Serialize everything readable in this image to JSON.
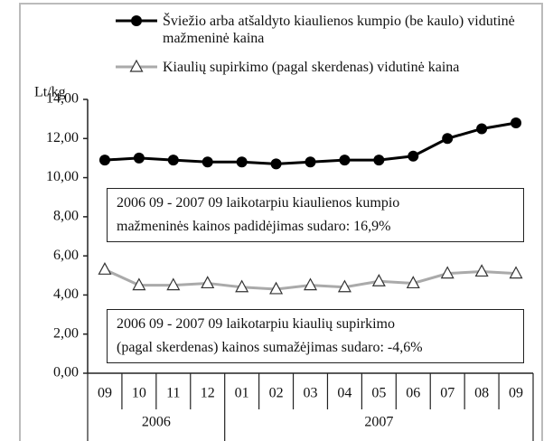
{
  "chart_data": {
    "type": "line",
    "y_label": "Lt/kg",
    "categories": [
      "09",
      "10",
      "11",
      "12",
      "01",
      "02",
      "03",
      "04",
      "05",
      "06",
      "07",
      "08",
      "09"
    ],
    "groups": [
      {
        "label": "2006",
        "count": 4
      },
      {
        "label": "2007",
        "count": 9
      }
    ],
    "series": [
      {
        "name": "Šviežio arba atšaldyto kiaulienos kumpio (be kaulo) vidutinė mažmeninė kaina",
        "color": "#000000",
        "marker": "circle",
        "values": [
          10.9,
          11.0,
          10.9,
          10.8,
          10.8,
          10.7,
          10.8,
          10.9,
          10.9,
          11.1,
          12.0,
          12.5,
          12.8
        ]
      },
      {
        "name": "Kiaulių supirkimo (pagal skerdenas) vidutinė kaina",
        "color": "#aaaaaa",
        "marker": "triangle",
        "values": [
          5.3,
          4.5,
          4.5,
          4.6,
          4.4,
          4.3,
          4.5,
          4.4,
          4.7,
          4.6,
          5.1,
          5.2,
          5.1
        ]
      }
    ],
    "ylim": [
      0,
      14
    ],
    "yticks": [
      {
        "value": 0,
        "label": "0,00"
      },
      {
        "value": 2,
        "label": "2,00"
      },
      {
        "value": 4,
        "label": "4,00"
      },
      {
        "value": 6,
        "label": "6,00"
      },
      {
        "value": 8,
        "label": "8,00"
      },
      {
        "value": 10,
        "label": "10,00"
      },
      {
        "value": 12,
        "label": "12,00"
      },
      {
        "value": 14,
        "label": "14,00"
      }
    ],
    "annotations": [
      {
        "lines": [
          "2006 09 - 2007 09 laikotarpiu kiaulienos kumpio",
          "mažmeninės kainos padidėjimas sudaro: 16,9%"
        ]
      },
      {
        "lines": [
          "2006 09 - 2007 09 laikotarpiu kiaulių supirkimo",
          "(pagal skerdenas) kainos sumažėjimas sudaro: -4,6%"
        ]
      }
    ]
  }
}
